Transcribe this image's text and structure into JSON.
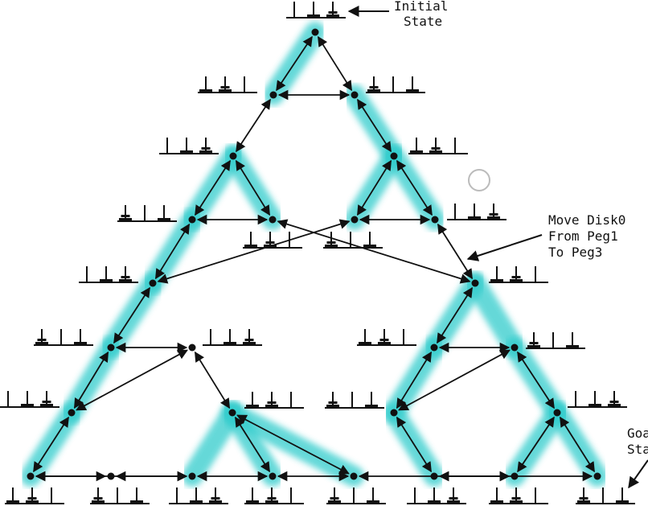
{
  "labels": {
    "initial_line1": "Initial",
    "initial_line2": "State",
    "move_line1": "Move Disk0",
    "move_line2": "From Peg1",
    "move_line3": "To Peg3",
    "goal_line1": "Goal",
    "goal_line2": "State"
  },
  "colors": {
    "highlight": "#33cccc",
    "edge": "#111111",
    "node": "#111111"
  },
  "diagram": {
    "title": "",
    "nodes": [
      "n0",
      "n1",
      "n2",
      "n3",
      "n4",
      "n5",
      "n6",
      "n7",
      "n8",
      "n9",
      "n10",
      "n11",
      "n12",
      "n13",
      "n14",
      "n15",
      "n16",
      "n17",
      "n18",
      "n19",
      "n20",
      "n21",
      "n22",
      "n23",
      "n24",
      "n25",
      "n26"
    ],
    "edges": [
      [
        "n0",
        "n1"
      ],
      [
        "n0",
        "n2"
      ],
      [
        "n1",
        "n2"
      ],
      [
        "n1",
        "n3"
      ],
      [
        "n2",
        "n4"
      ],
      [
        "n3",
        "n5"
      ],
      [
        "n3",
        "n6"
      ],
      [
        "n5",
        "n6"
      ],
      [
        "n4",
        "n7"
      ],
      [
        "n4",
        "n8"
      ],
      [
        "n7",
        "n8"
      ],
      [
        "n5",
        "n9"
      ],
      [
        "n7",
        "n9"
      ],
      [
        "n6",
        "n10"
      ],
      [
        "n8",
        "n10"
      ],
      [
        "n9",
        "n11"
      ],
      [
        "n10",
        "n12"
      ],
      [
        "n11",
        "n13"
      ],
      [
        "n11",
        "n14"
      ],
      [
        "n13",
        "n14"
      ],
      [
        "n12",
        "n15"
      ],
      [
        "n12",
        "n16"
      ],
      [
        "n15",
        "n16"
      ],
      [
        "n13",
        "n17"
      ],
      [
        "n17",
        "n19"
      ],
      [
        "n17",
        "n20"
      ],
      [
        "n19",
        "n20"
      ],
      [
        "n14",
        "n18"
      ],
      [
        "n18",
        "n21"
      ],
      [
        "n18",
        "n22"
      ],
      [
        "n21",
        "n22"
      ],
      [
        "n20",
        "n21"
      ],
      [
        "n15",
        "n23"
      ],
      [
        "n23",
        "n25"
      ],
      [
        "n23",
        "n26"
      ],
      [
        "n16",
        "n24"
      ],
      [
        "n24",
        "n25"
      ],
      [
        "n24",
        "n26"
      ],
      [
        "n22",
        "n25"
      ]
    ]
  }
}
